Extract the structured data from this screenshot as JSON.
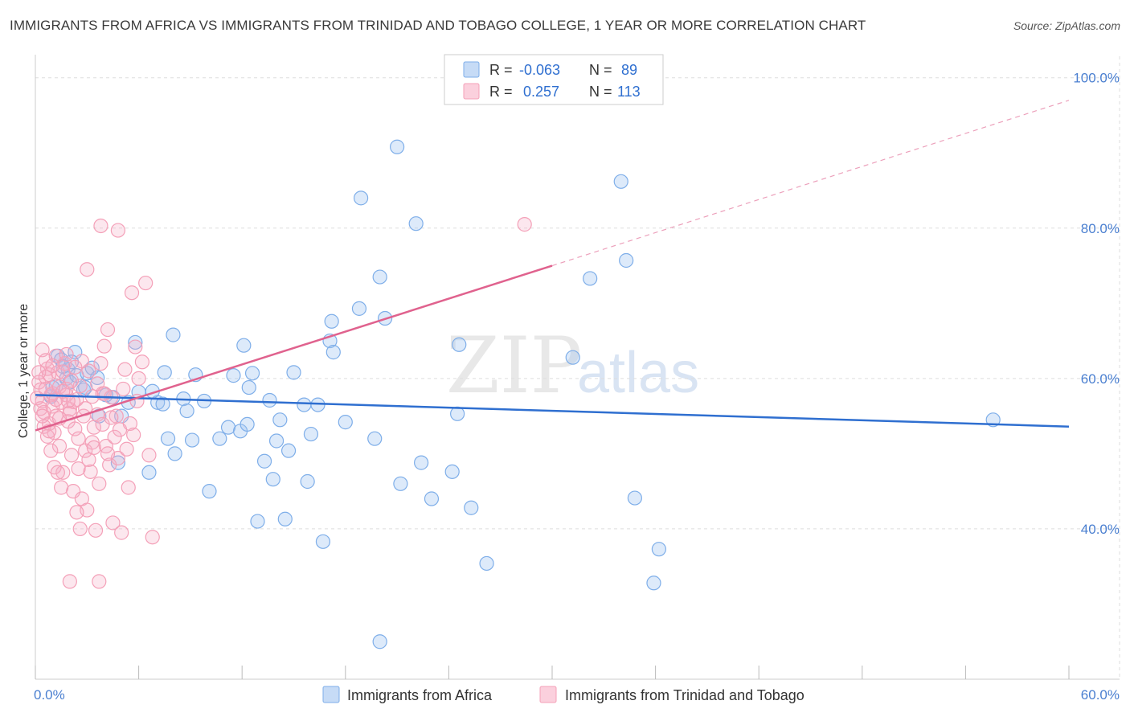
{
  "title": "IMMIGRANTS FROM AFRICA VS IMMIGRANTS FROM TRINIDAD AND TOBAGO COLLEGE, 1 YEAR OR MORE CORRELATION CHART",
  "source": "Source: ZipAtlas.com",
  "watermark": {
    "zip": "ZIP",
    "atlas": "atlas"
  },
  "colors": {
    "africa": "#7eaee9",
    "africa_line": "#2f6fd0",
    "trinidad": "#f4a0b8",
    "trinidad_line": "#e0628e",
    "grid": "#dddddd"
  },
  "chart_data": {
    "type": "scatter",
    "xlabel": "",
    "ylabel": "College, 1 year or more",
    "xlim": [
      0,
      60
    ],
    "ylim": [
      20,
      102
    ],
    "x_tick_labels": [
      "0.0%",
      "60.0%"
    ],
    "y_ticks": [
      40,
      60,
      80,
      100
    ],
    "y_tick_labels": [
      "40.0%",
      "60.0%",
      "80.0%",
      "100.0%"
    ],
    "legend": [
      {
        "r_label": "R =",
        "r_value": "-0.063",
        "n_label": "N =",
        "n_value": "89"
      },
      {
        "r_label": "R =",
        "r_value": " 0.257",
        "n_label": "N =",
        "n_value": "113"
      }
    ],
    "series": [
      {
        "name": "Immigrants from Africa",
        "trend": {
          "x0": 0,
          "y0": 57.8,
          "x1": 60,
          "y1": 53.6,
          "dashed_to": null
        },
        "points": [
          [
            1.2,
            59
          ],
          [
            1.3,
            63
          ],
          [
            1.5,
            62.5
          ],
          [
            1.8,
            60
          ],
          [
            1.9,
            61.2
          ],
          [
            2,
            59.5
          ],
          [
            2.3,
            63.5
          ],
          [
            2.4,
            60.4
          ],
          [
            2.8,
            58.5
          ],
          [
            3,
            60.7
          ],
          [
            3.3,
            61.4
          ],
          [
            3.7,
            55
          ],
          [
            4.5,
            57.5
          ],
          [
            4.8,
            48.8
          ],
          [
            5.0,
            55
          ],
          [
            5.8,
            64.8
          ],
          [
            6,
            58.2
          ],
          [
            6.6,
            47.5
          ],
          [
            7.1,
            56.8
          ],
          [
            7.5,
            60.8
          ],
          [
            7.7,
            52
          ],
          [
            8,
            65.8
          ],
          [
            8.1,
            50
          ],
          [
            8.6,
            57.3
          ],
          [
            8.8,
            55.7
          ],
          [
            9.1,
            51.8
          ],
          [
            9.3,
            60.5
          ],
          [
            9.8,
            57
          ],
          [
            10.1,
            45
          ],
          [
            10.7,
            52
          ],
          [
            11.2,
            53.5
          ],
          [
            11.5,
            60.4
          ],
          [
            11.9,
            53
          ],
          [
            12.1,
            64.4
          ],
          [
            12.3,
            53.9
          ],
          [
            12.4,
            58.8
          ],
          [
            12.6,
            60.7
          ],
          [
            12.9,
            41
          ],
          [
            13.3,
            49
          ],
          [
            13.6,
            57.1
          ],
          [
            13.8,
            46.6
          ],
          [
            14,
            51.7
          ],
          [
            14.2,
            54.5
          ],
          [
            14.5,
            41.3
          ],
          [
            14.7,
            50.4
          ],
          [
            15,
            60.8
          ],
          [
            15.6,
            56.5
          ],
          [
            16,
            52.6
          ],
          [
            15.8,
            46.3
          ],
          [
            16.4,
            56.5
          ],
          [
            16.7,
            38.3
          ],
          [
            17.1,
            65
          ],
          [
            17.3,
            63.5
          ],
          [
            17.2,
            67.6
          ],
          [
            18,
            54.2
          ],
          [
            18.8,
            69.3
          ],
          [
            19.7,
            52
          ],
          [
            20,
            73.5
          ],
          [
            20.3,
            68
          ],
          [
            21,
            90.8
          ],
          [
            21.2,
            46
          ],
          [
            22.1,
            80.6
          ],
          [
            22.4,
            48.8
          ],
          [
            23,
            44
          ],
          [
            24.2,
            47.6
          ],
          [
            24.5,
            55.3
          ],
          [
            24.6,
            64.5
          ],
          [
            25.3,
            42.8
          ],
          [
            26.2,
            35.4
          ],
          [
            20,
            25
          ],
          [
            18.9,
            84
          ],
          [
            31.2,
            62.8
          ],
          [
            32.2,
            73.3
          ],
          [
            34,
            86.2
          ],
          [
            34.3,
            75.7
          ],
          [
            34.8,
            44.1
          ],
          [
            36.2,
            37.3
          ],
          [
            35.9,
            32.8
          ],
          [
            55.6,
            54.5
          ],
          [
            2.9,
            58.8
          ],
          [
            4.1,
            57.8
          ],
          [
            5.4,
            56.8
          ],
          [
            6.8,
            58.3
          ],
          [
            7.4,
            56.6
          ],
          [
            3.6,
            60.1
          ],
          [
            2.1,
            62.2
          ],
          [
            1.6,
            61.6
          ],
          [
            0.9,
            57.6
          ],
          [
            1.0,
            58.8
          ]
        ]
      },
      {
        "name": "Immigrants from Trinidad and Tobago",
        "trend": {
          "x0": 0,
          "y0": 53.1,
          "x1": 30,
          "y1": 75,
          "dashed_to": {
            "x": 60,
            "y": 97
          }
        },
        "points": [
          [
            0.2,
            59.5
          ],
          [
            0.3,
            58.5
          ],
          [
            0.4,
            57
          ],
          [
            0.5,
            55.5
          ],
          [
            0.6,
            60.2
          ],
          [
            0.7,
            61.3
          ],
          [
            0.8,
            54
          ],
          [
            0.9,
            57.8
          ],
          [
            1.0,
            56.3
          ],
          [
            1.1,
            52.8
          ],
          [
            1.2,
            55
          ],
          [
            1.3,
            60.8
          ],
          [
            1.4,
            51
          ],
          [
            1.5,
            56.8
          ],
          [
            1.6,
            47.5
          ],
          [
            1.7,
            62
          ],
          [
            1.8,
            58.6
          ],
          [
            1.9,
            54.3
          ],
          [
            2.0,
            55.9
          ],
          [
            2.1,
            49.8
          ],
          [
            2.2,
            45
          ],
          [
            2.3,
            53.3
          ],
          [
            2.4,
            57.2
          ],
          [
            2.5,
            48
          ],
          [
            2.6,
            59
          ],
          [
            2.7,
            44
          ],
          [
            2.8,
            55
          ],
          [
            2.9,
            50.4
          ],
          [
            3.0,
            42.5
          ],
          [
            3.1,
            61
          ],
          [
            3.2,
            47.6
          ],
          [
            3.3,
            57.6
          ],
          [
            3.4,
            53.5
          ],
          [
            3.5,
            39.8
          ],
          [
            3.6,
            55.2
          ],
          [
            3.7,
            46
          ],
          [
            3.8,
            62
          ],
          [
            3.9,
            58
          ],
          [
            4.0,
            64.3
          ],
          [
            4.1,
            51
          ],
          [
            4.2,
            66.5
          ],
          [
            4.3,
            48.5
          ],
          [
            4.4,
            57.5
          ],
          [
            4.5,
            40.8
          ],
          [
            4.6,
            52.2
          ],
          [
            4.7,
            55
          ],
          [
            4.8,
            49.4
          ],
          [
            4.9,
            53.2
          ],
          [
            5.0,
            39.5
          ],
          [
            5.1,
            58.6
          ],
          [
            5.2,
            61.2
          ],
          [
            5.3,
            50.6
          ],
          [
            5.4,
            45.5
          ],
          [
            5.5,
            54
          ],
          [
            5.6,
            71.4
          ],
          [
            5.7,
            52.5
          ],
          [
            5.8,
            64.2
          ],
          [
            5.9,
            57
          ],
          [
            6.0,
            60
          ],
          [
            6.2,
            62.2
          ],
          [
            6.4,
            72.7
          ],
          [
            6.6,
            49.8
          ],
          [
            6.8,
            38.9
          ],
          [
            3.0,
            74.5
          ],
          [
            3.8,
            80.3
          ],
          [
            4.8,
            79.7
          ],
          [
            2.0,
            33
          ],
          [
            3.7,
            33
          ],
          [
            28.4,
            80.5
          ],
          [
            0.4,
            63.8
          ],
          [
            0.6,
            62.4
          ],
          [
            0.8,
            60.5
          ],
          [
            1.0,
            58
          ],
          [
            1.2,
            63
          ],
          [
            1.4,
            58.9
          ],
          [
            1.6,
            60.9
          ],
          [
            1.8,
            57.8
          ],
          [
            2.0,
            55.4
          ],
          [
            2.2,
            56.9
          ],
          [
            0.3,
            56
          ],
          [
            0.5,
            53.6
          ],
          [
            0.7,
            52.3
          ],
          [
            0.9,
            50.4
          ],
          [
            1.1,
            48.2
          ],
          [
            1.3,
            47.5
          ],
          [
            1.5,
            45.5
          ],
          [
            2.4,
            42.2
          ],
          [
            2.6,
            40
          ],
          [
            3.3,
            51.5
          ],
          [
            3.6,
            59.3
          ],
          [
            4.0,
            58
          ],
          [
            2.7,
            62.3
          ],
          [
            1.9,
            57
          ],
          [
            2.1,
            59.7
          ],
          [
            2.3,
            61.5
          ],
          [
            0.2,
            60.8
          ],
          [
            0.4,
            55
          ],
          [
            0.6,
            58.6
          ],
          [
            0.8,
            53
          ],
          [
            1.0,
            61.7
          ],
          [
            1.2,
            57.2
          ],
          [
            1.4,
            54.7
          ],
          [
            1.6,
            58.3
          ],
          [
            1.8,
            63.2
          ],
          [
            2.5,
            52
          ],
          [
            2.9,
            56
          ],
          [
            3.1,
            49.2
          ],
          [
            3.4,
            50.8
          ],
          [
            3.9,
            53.9
          ],
          [
            4.2,
            50
          ],
          [
            4.4,
            54.8
          ],
          [
            0.1,
            57.4
          ]
        ]
      }
    ]
  },
  "bottom_legend": [
    "Immigrants from Africa",
    "Immigrants from Trinidad and Tobago"
  ]
}
